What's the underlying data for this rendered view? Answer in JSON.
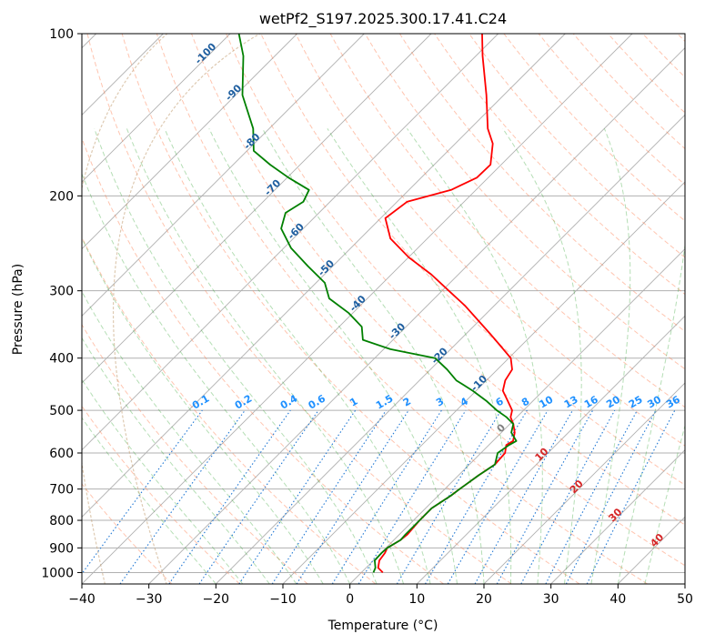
{
  "chart_data": {
    "type": "skewt",
    "title": "wetPf2_S197.2025.300.17.41.C24",
    "xlabel": "Temperature (°C)",
    "ylabel": "Pressure (hPa)",
    "xlim": [
      -40,
      50
    ],
    "plim": [
      1050,
      100
    ],
    "x_ticks": [
      "−40",
      "−30",
      "−20",
      "−10",
      "0",
      "10",
      "20",
      "30",
      "40",
      "50"
    ],
    "x_tick_values": [
      -40,
      -30,
      -20,
      -10,
      0,
      10,
      20,
      30,
      40,
      50
    ],
    "p_ticks": [
      "100",
      "200",
      "300",
      "400",
      "500",
      "600",
      "700",
      "800",
      "900",
      "1000"
    ],
    "p_tick_values": [
      100,
      200,
      300,
      400,
      500,
      600,
      700,
      800,
      900,
      1000
    ],
    "temperature_profile": {
      "name": "Temperature",
      "color": "#ff0000",
      "p": [
        1000,
        980,
        950,
        920,
        900,
        870,
        850,
        800,
        760,
        720,
        700,
        660,
        630,
        600,
        580,
        570,
        550,
        530,
        515,
        500,
        480,
        460,
        440,
        420,
        400,
        380,
        360,
        340,
        320,
        300,
        280,
        260,
        240,
        220,
        205,
        195,
        185,
        175,
        160,
        150,
        130,
        110,
        100
      ],
      "t": [
        3.2,
        1.8,
        0.9,
        0.6,
        0.2,
        1.0,
        1.2,
        0.9,
        0.9,
        1.9,
        2.2,
        3.0,
        3.8,
        3.6,
        2.6,
        3.0,
        2.0,
        0.5,
        -0.9,
        -1.7,
        -3.8,
        -6.0,
        -7.2,
        -7.8,
        -9.7,
        -13.0,
        -16.5,
        -20.3,
        -24.3,
        -29.0,
        -34.0,
        -40.0,
        -45.5,
        -49.3,
        -48.5,
        -43.7,
        -41.7,
        -41.6,
        -44.4,
        -47.4,
        -52.6,
        -59.0,
        -62.4
      ]
    },
    "dewpoint_profile": {
      "name": "Dewpoint",
      "color": "#008000",
      "p": [
        1000,
        980,
        950,
        920,
        900,
        870,
        850,
        800,
        760,
        720,
        700,
        660,
        630,
        600,
        580,
        570,
        550,
        530,
        515,
        500,
        480,
        460,
        440,
        420,
        400,
        385,
        370,
        350,
        330,
        310,
        290,
        270,
        250,
        230,
        215,
        205,
        195,
        185,
        175,
        165,
        150,
        130,
        110,
        100
      ],
      "t": [
        1.8,
        1.4,
        0.2,
        0.1,
        0.2,
        1.0,
        0.9,
        0.9,
        0.9,
        1.9,
        2.2,
        3.0,
        3.8,
        2.5,
        3.0,
        3.5,
        1.5,
        0.5,
        -1.5,
        -4.0,
        -7.0,
        -10.5,
        -14.5,
        -17.5,
        -21.0,
        -29.0,
        -34.5,
        -36.6,
        -40.6,
        -45.7,
        -48.7,
        -53.7,
        -58.9,
        -63.3,
        -65.0,
        -64.0,
        -64.9,
        -69.8,
        -74.5,
        -79.0,
        -82.4,
        -89.0,
        -94.7,
        -98.7
      ]
    },
    "isotherm_labels": [
      "-100",
      "-90",
      "-80",
      "-70",
      "-60",
      "-50",
      "-40",
      "-30",
      "-20",
      "-10",
      "0",
      "10",
      "20",
      "30",
      "40"
    ],
    "isotherm_label_values": [
      -100,
      -90,
      -80,
      -70,
      -60,
      -50,
      -40,
      -30,
      -20,
      -10,
      0,
      10,
      20,
      30,
      40
    ],
    "mixing_ratio_labels": [
      "0.1",
      "0.2",
      "0.4",
      "0.6",
      "1",
      "1.5",
      "2",
      "3",
      "4",
      "6",
      "8",
      "10",
      "13",
      "16",
      "20",
      "25",
      "30",
      "36"
    ],
    "mixing_ratio_values": [
      0.1,
      0.2,
      0.4,
      0.6,
      1,
      1.5,
      2,
      3,
      4,
      6,
      8,
      10,
      13,
      16,
      20,
      25,
      30,
      36
    ],
    "grid": true
  }
}
